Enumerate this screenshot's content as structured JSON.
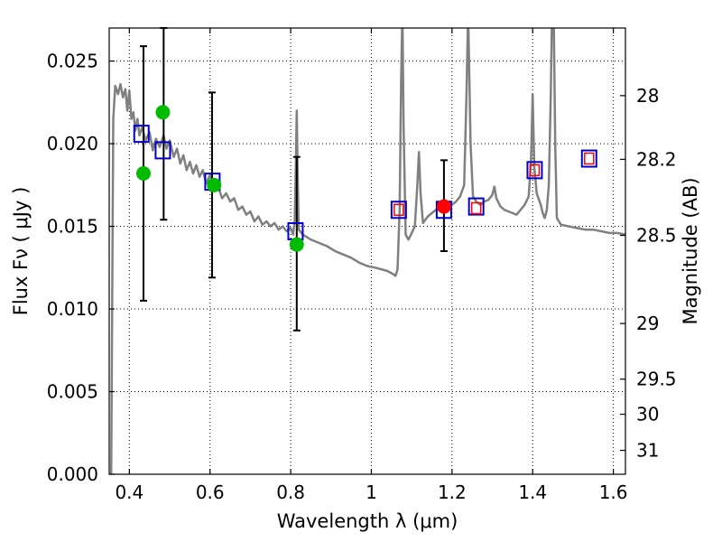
{
  "chart_data": {
    "type": "scatter",
    "xlabel": "Wavelength  λ (μm)",
    "ylabel": "Flux  Fν  ( μJy )",
    "ylabel_right": "Magnitude (AB)",
    "xlim": [
      0.35,
      1.63
    ],
    "ylim": [
      0.0,
      0.027
    ],
    "grid": true,
    "x_ticks": [
      {
        "v": 0.4,
        "label": "0.4"
      },
      {
        "v": 0.6,
        "label": "0.6"
      },
      {
        "v": 0.8,
        "label": "0.8"
      },
      {
        "v": 1.0,
        "label": "1"
      },
      {
        "v": 1.2,
        "label": "1.2"
      },
      {
        "v": 1.4,
        "label": "1.4"
      },
      {
        "v": 1.6,
        "label": "1.6"
      }
    ],
    "y_ticks": [
      {
        "v": 0.0,
        "label": "0.000"
      },
      {
        "v": 0.005,
        "label": "0.005"
      },
      {
        "v": 0.01,
        "label": "0.010"
      },
      {
        "v": 0.015,
        "label": "0.015"
      },
      {
        "v": 0.02,
        "label": "0.020"
      },
      {
        "v": 0.025,
        "label": "0.025"
      }
    ],
    "right_ticks": [
      {
        "mag": 28,
        "label": "28"
      },
      {
        "mag": 28.2,
        "label": "28.2"
      },
      {
        "mag": 28.5,
        "label": "28.5"
      },
      {
        "mag": 29,
        "label": "29"
      },
      {
        "mag": 29.5,
        "label": "29.5"
      },
      {
        "mag": 30,
        "label": "30"
      },
      {
        "mag": 31,
        "label": "31"
      }
    ],
    "series": [
      {
        "name": "model SED",
        "kind": "line",
        "color": "#808080",
        "points": [
          [
            0.355,
            0.0
          ],
          [
            0.36,
            0.0215
          ],
          [
            0.365,
            0.0235
          ],
          [
            0.372,
            0.023
          ],
          [
            0.378,
            0.0236
          ],
          [
            0.384,
            0.0228
          ],
          [
            0.39,
            0.0233
          ],
          [
            0.395,
            0.022
          ],
          [
            0.4,
            0.0232
          ],
          [
            0.405,
            0.0215
          ],
          [
            0.41,
            0.0219
          ],
          [
            0.415,
            0.0208
          ],
          [
            0.42,
            0.0215
          ],
          [
            0.425,
            0.0205
          ],
          [
            0.432,
            0.021
          ],
          [
            0.44,
            0.0202
          ],
          [
            0.45,
            0.0207
          ],
          [
            0.458,
            0.0196
          ],
          [
            0.466,
            0.0203
          ],
          [
            0.475,
            0.0198
          ],
          [
            0.485,
            0.0205
          ],
          [
            0.492,
            0.0197
          ],
          [
            0.5,
            0.0202
          ],
          [
            0.51,
            0.0192
          ],
          [
            0.518,
            0.0197
          ],
          [
            0.526,
            0.0188
          ],
          [
            0.534,
            0.0193
          ],
          [
            0.542,
            0.0184
          ],
          [
            0.55,
            0.0189
          ],
          [
            0.558,
            0.0182
          ],
          [
            0.566,
            0.0187
          ],
          [
            0.574,
            0.018
          ],
          [
            0.582,
            0.0184
          ],
          [
            0.59,
            0.0176
          ],
          [
            0.6,
            0.0181
          ],
          [
            0.61,
            0.0172
          ],
          [
            0.62,
            0.0174
          ],
          [
            0.63,
            0.0167
          ],
          [
            0.64,
            0.017
          ],
          [
            0.65,
            0.0165
          ],
          [
            0.66,
            0.0167
          ],
          [
            0.67,
            0.016
          ],
          [
            0.68,
            0.0162
          ],
          [
            0.69,
            0.0157
          ],
          [
            0.7,
            0.0159
          ],
          [
            0.71,
            0.0153
          ],
          [
            0.72,
            0.0156
          ],
          [
            0.73,
            0.0151
          ],
          [
            0.74,
            0.0153
          ],
          [
            0.75,
            0.015
          ],
          [
            0.76,
            0.0152
          ],
          [
            0.77,
            0.0148
          ],
          [
            0.78,
            0.015
          ],
          [
            0.79,
            0.0147
          ],
          [
            0.8,
            0.0149
          ],
          [
            0.806,
            0.0145
          ],
          [
            0.81,
            0.0154
          ],
          [
            0.813,
            0.019
          ],
          [
            0.815,
            0.022
          ],
          [
            0.817,
            0.0185
          ],
          [
            0.82,
            0.0148
          ],
          [
            0.83,
            0.0145
          ],
          [
            0.85,
            0.0142
          ],
          [
            0.87,
            0.014
          ],
          [
            0.89,
            0.0138
          ],
          [
            0.91,
            0.0135
          ],
          [
            0.93,
            0.0133
          ],
          [
            0.95,
            0.0131
          ],
          [
            0.97,
            0.0128
          ],
          [
            0.99,
            0.0126
          ],
          [
            1.01,
            0.0125
          ],
          [
            1.04,
            0.0123
          ],
          [
            1.055,
            0.0121
          ],
          [
            1.06,
            0.012
          ],
          [
            1.065,
            0.0124
          ],
          [
            1.07,
            0.016
          ],
          [
            1.074,
            0.024
          ],
          [
            1.077,
            0.028
          ],
          [
            1.08,
            0.021
          ],
          [
            1.085,
            0.0145
          ],
          [
            1.092,
            0.0142
          ],
          [
            1.1,
            0.0146
          ],
          [
            1.108,
            0.015
          ],
          [
            1.114,
            0.0175
          ],
          [
            1.118,
            0.0195
          ],
          [
            1.122,
            0.017
          ],
          [
            1.128,
            0.0152
          ],
          [
            1.14,
            0.0156
          ],
          [
            1.15,
            0.0158
          ],
          [
            1.16,
            0.016
          ],
          [
            1.17,
            0.0161
          ],
          [
            1.18,
            0.0159
          ],
          [
            1.19,
            0.0161
          ],
          [
            1.2,
            0.0163
          ],
          [
            1.21,
            0.0165
          ],
          [
            1.22,
            0.0168
          ],
          [
            1.23,
            0.0175
          ],
          [
            1.236,
            0.023
          ],
          [
            1.24,
            0.028
          ],
          [
            1.246,
            0.02
          ],
          [
            1.252,
            0.0168
          ],
          [
            1.26,
            0.0165
          ],
          [
            1.27,
            0.0163
          ],
          [
            1.28,
            0.0165
          ],
          [
            1.29,
            0.0166
          ],
          [
            1.3,
            0.0169
          ],
          [
            1.305,
            0.0174
          ],
          [
            1.31,
            0.0167
          ],
          [
            1.32,
            0.0162
          ],
          [
            1.33,
            0.016
          ],
          [
            1.34,
            0.0159
          ],
          [
            1.35,
            0.0158
          ],
          [
            1.36,
            0.0157
          ],
          [
            1.37,
            0.016
          ],
          [
            1.38,
            0.0163
          ],
          [
            1.39,
            0.0168
          ],
          [
            1.396,
            0.019
          ],
          [
            1.4,
            0.023
          ],
          [
            1.404,
            0.0186
          ],
          [
            1.41,
            0.017
          ],
          [
            1.42,
            0.0163
          ],
          [
            1.425,
            0.0158
          ],
          [
            1.43,
            0.0155
          ],
          [
            1.435,
            0.016
          ],
          [
            1.44,
            0.0175
          ],
          [
            1.445,
            0.023
          ],
          [
            1.448,
            0.028
          ],
          [
            1.452,
            0.028
          ],
          [
            1.456,
            0.02
          ],
          [
            1.46,
            0.0155
          ],
          [
            1.47,
            0.0151
          ],
          [
            1.49,
            0.015
          ],
          [
            1.51,
            0.0149
          ],
          [
            1.53,
            0.0148
          ],
          [
            1.55,
            0.0148
          ],
          [
            1.57,
            0.0147
          ],
          [
            1.59,
            0.0146
          ],
          [
            1.61,
            0.0146
          ],
          [
            1.63,
            0.0145
          ]
        ]
      },
      {
        "name": "observed (green)",
        "kind": "points",
        "color": "#00bb00",
        "points": [
          [
            0.435,
            0.0182
          ],
          [
            0.483,
            0.0219
          ],
          [
            0.61,
            0.0175
          ],
          [
            0.815,
            0.0139
          ]
        ],
        "err_low": [
          0.0105,
          0.0154,
          0.0119,
          0.0087
        ],
        "err_high": [
          0.0259,
          0.027,
          0.0231,
          0.0192
        ],
        "err_x": [
          0.435,
          0.485,
          0.605,
          0.815
        ]
      },
      {
        "name": "observed (red)",
        "kind": "points",
        "color": "#ff0000",
        "points": [
          [
            1.18,
            0.0162
          ]
        ],
        "err_low": [
          0.0135
        ],
        "err_high": [
          0.019
        ],
        "err_x": [
          1.18
        ]
      },
      {
        "name": "model photometry (blue squares)",
        "kind": "squares",
        "color": "#0000cc",
        "points": [
          [
            0.43,
            0.0206
          ],
          [
            0.483,
            0.0196
          ],
          [
            0.606,
            0.0177
          ],
          [
            0.812,
            0.0147
          ],
          [
            1.068,
            0.016
          ],
          [
            1.18,
            0.016
          ],
          [
            1.26,
            0.0162
          ],
          [
            1.405,
            0.0184
          ],
          [
            1.54,
            0.0191
          ]
        ]
      },
      {
        "name": "synthetic (small red squares)",
        "kind": "small-squares",
        "color": "#ff0000",
        "points": [
          [
            1.068,
            0.016
          ],
          [
            1.26,
            0.0161
          ],
          [
            1.405,
            0.0184
          ],
          [
            1.54,
            0.0191
          ]
        ]
      }
    ]
  }
}
